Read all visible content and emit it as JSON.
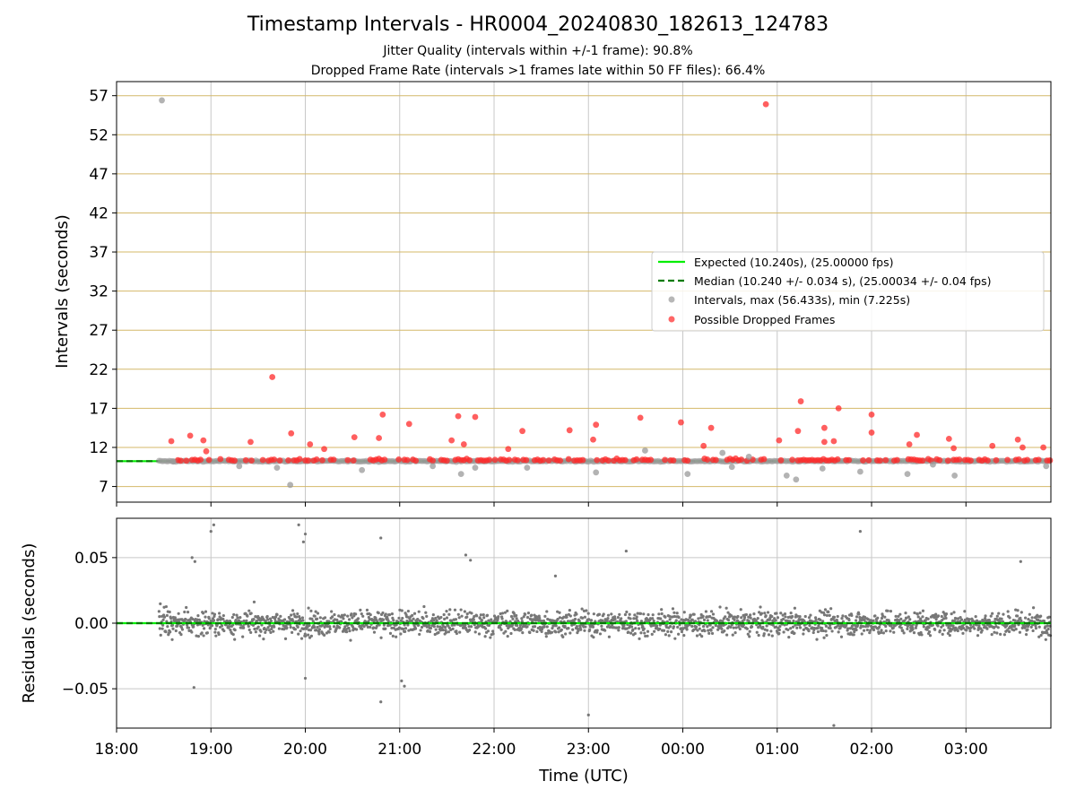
{
  "chart_data": [
    {
      "type": "scatter",
      "panel": "intervals",
      "title": "Timestamp Intervals - HR0004_20240830_182613_124783",
      "subtitle_1": "Jitter Quality (intervals within +/-1 frame): 90.8%",
      "subtitle_2": "Dropped Frame Rate (intervals >1 frames late within 50 FF files): 66.4%",
      "xlabel": "",
      "ylabel": "Intervals (seconds)",
      "x_tick_labels": [
        "18:00",
        "19:00",
        "20:00",
        "21:00",
        "22:00",
        "23:00",
        "00:00",
        "01:00",
        "02:00",
        "03:00"
      ],
      "xlim_hours_from_1800": [
        0,
        9.9
      ],
      "ylim": [
        5,
        58.8
      ],
      "y_ticks": [
        7,
        12,
        17,
        22,
        27,
        32,
        37,
        42,
        47,
        52,
        57
      ],
      "grid": true,
      "legend_position": "center-right",
      "legend": [
        {
          "label": "Expected (10.240s), (25.00000 fps)",
          "color": "#00ee00",
          "style": "solid"
        },
        {
          "label": "Median (10.240 +/- 0.034 s), (25.00034 +/- 0.04 fps)",
          "color": "#007a00",
          "style": "dashed"
        },
        {
          "label": "Intervals, max (56.433s), min (7.225s)",
          "color": "#999999",
          "style": "marker"
        },
        {
          "label": "Possible Dropped Frames",
          "color": "#ff3333",
          "style": "marker"
        }
      ],
      "expected_interval": 10.24,
      "median_interval": 10.24,
      "series": [
        {
          "name": "Intervals, max (56.433s), min (7.225s)",
          "color": "#999999",
          "points_hours_from_1800": [
            [
              0.48,
              56.4
            ],
            [
              1.84,
              7.2
            ],
            [
              0.6,
              10.2
            ],
            [
              1.3,
              9.6
            ],
            [
              1.7,
              9.4
            ],
            [
              2.6,
              9.1
            ],
            [
              3.35,
              9.6
            ],
            [
              3.65,
              8.6
            ],
            [
              3.8,
              9.4
            ],
            [
              4.35,
              9.4
            ],
            [
              5.08,
              8.8
            ],
            [
              5.6,
              11.6
            ],
            [
              6.05,
              8.6
            ],
            [
              6.42,
              11.3
            ],
            [
              6.52,
              9.5
            ],
            [
              6.7,
              10.8
            ],
            [
              7.1,
              8.4
            ],
            [
              7.2,
              7.9
            ],
            [
              7.48,
              9.3
            ],
            [
              7.88,
              8.9
            ],
            [
              8.38,
              8.6
            ],
            [
              8.65,
              9.8
            ],
            [
              8.88,
              8.4
            ],
            [
              9.85,
              9.6
            ]
          ]
        },
        {
          "name": "Possible Dropped Frames",
          "color": "#ff3333",
          "points_hours_from_1800": [
            [
              6.88,
              55.9
            ],
            [
              1.65,
              21.0
            ],
            [
              7.25,
              17.9
            ],
            [
              8.0,
              16.2
            ],
            [
              7.65,
              17.0
            ],
            [
              2.82,
              16.2
            ],
            [
              3.62,
              16.0
            ],
            [
              3.8,
              15.9
            ],
            [
              5.55,
              15.8
            ],
            [
              5.98,
              15.2
            ],
            [
              3.1,
              15.0
            ],
            [
              5.08,
              14.9
            ],
            [
              7.5,
              14.5
            ],
            [
              6.3,
              14.5
            ],
            [
              4.8,
              14.2
            ],
            [
              4.3,
              14.1
            ],
            [
              1.85,
              13.8
            ],
            [
              2.52,
              13.3
            ],
            [
              0.78,
              13.5
            ],
            [
              7.22,
              14.1
            ],
            [
              8.48,
              13.6
            ],
            [
              0.58,
              12.8
            ],
            [
              0.92,
              12.9
            ],
            [
              1.42,
              12.7
            ],
            [
              2.05,
              12.4
            ],
            [
              2.78,
              13.2
            ],
            [
              3.55,
              12.9
            ],
            [
              5.05,
              13.0
            ],
            [
              7.6,
              12.8
            ],
            [
              8.0,
              13.9
            ],
            [
              8.82,
              13.1
            ],
            [
              9.55,
              13.0
            ],
            [
              9.6,
              12.0
            ],
            [
              0.95,
              11.5
            ],
            [
              2.2,
              11.8
            ],
            [
              3.68,
              12.4
            ],
            [
              4.15,
              11.8
            ],
            [
              6.22,
              12.2
            ],
            [
              7.02,
              12.9
            ],
            [
              7.5,
              12.7
            ],
            [
              8.4,
              12.4
            ],
            [
              8.87,
              11.9
            ],
            [
              9.28,
              12.2
            ],
            [
              9.82,
              12.0
            ]
          ]
        }
      ]
    },
    {
      "type": "scatter",
      "panel": "residuals",
      "xlabel": "Time (UTC)",
      "ylabel": "Residuals (seconds)",
      "x_tick_labels": [
        "18:00",
        "19:00",
        "20:00",
        "21:00",
        "22:00",
        "23:00",
        "00:00",
        "01:00",
        "02:00",
        "03:00"
      ],
      "xlim_hours_from_1800": [
        0,
        9.9
      ],
      "ylim": [
        -0.08,
        0.08
      ],
      "y_ticks": [
        -0.05,
        0.0,
        0.05
      ],
      "y_tick_labels": [
        "−0.05",
        "0.00",
        "0.05"
      ],
      "grid": true,
      "zero_line_color": "#00ee00",
      "zero_line_dash_color": "#007a00",
      "points_color": "#777777",
      "outlier_points_hours_from_1800": [
        [
          1.03,
          0.075
        ],
        [
          1.0,
          0.07
        ],
        [
          1.93,
          0.075
        ],
        [
          2.0,
          0.068
        ],
        [
          1.98,
          0.062
        ],
        [
          2.8,
          0.065
        ],
        [
          7.88,
          0.07
        ],
        [
          0.8,
          0.05
        ],
        [
          0.83,
          0.047
        ],
        [
          5.0,
          -0.07
        ],
        [
          7.6,
          -0.078
        ],
        [
          0.82,
          -0.049
        ],
        [
          2.0,
          -0.042
        ],
        [
          3.05,
          -0.048
        ],
        [
          3.02,
          -0.044
        ],
        [
          2.8,
          -0.06
        ],
        [
          5.4,
          0.055
        ],
        [
          9.58,
          0.047
        ],
        [
          4.65,
          0.036
        ],
        [
          3.7,
          0.052
        ],
        [
          3.75,
          0.048
        ]
      ]
    }
  ]
}
